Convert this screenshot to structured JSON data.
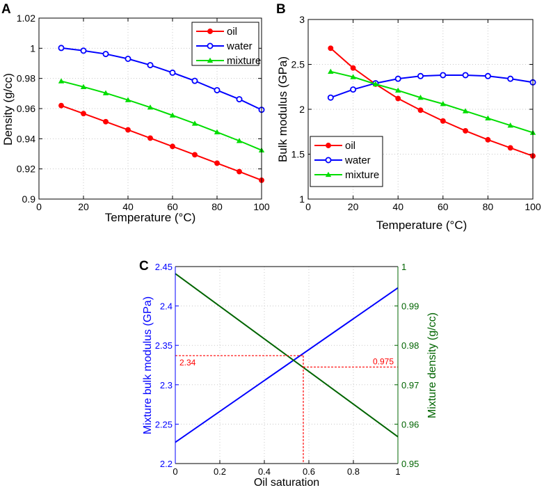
{
  "chart_data": [
    {
      "panel_label": "A",
      "type": "line",
      "xlabel": "Temperature (°C)",
      "ylabel": "Density (g/cc)",
      "xlim": [
        0,
        100
      ],
      "ylim": [
        0.9,
        1.02
      ],
      "xticks": [
        0,
        20,
        40,
        60,
        80,
        100
      ],
      "xtick_labels": [
        "0",
        "20",
        "40",
        "60",
        "80",
        "100"
      ],
      "yticks": [
        0.9,
        0.92,
        0.94,
        0.96,
        0.98,
        1.0,
        1.02
      ],
      "ytick_labels": [
        "0.9",
        "0.92",
        "0.94",
        "0.96",
        "0.98",
        "1",
        "1.02"
      ],
      "grid": true,
      "legend_position": "top-right",
      "x": [
        10,
        20,
        30,
        40,
        50,
        60,
        70,
        80,
        90,
        100
      ],
      "series": [
        {
          "name": "oil",
          "color": "#ff0000",
          "marker": "filled-circle",
          "values": [
            0.962,
            0.9567,
            0.9513,
            0.9459,
            0.9404,
            0.9349,
            0.9294,
            0.9238,
            0.9182,
            0.9125
          ]
        },
        {
          "name": "water",
          "color": "#0000ff",
          "marker": "open-circle",
          "values": [
            1.0002,
            0.9984,
            0.9962,
            0.993,
            0.9888,
            0.9838,
            0.9784,
            0.9722,
            0.9662,
            0.9592
          ]
        },
        {
          "name": "mixture",
          "color": "#00dd00",
          "marker": "triangle",
          "values": [
            0.9782,
            0.9744,
            0.9703,
            0.9657,
            0.9608,
            0.9555,
            0.9501,
            0.9444,
            0.9386,
            0.9324
          ]
        }
      ]
    },
    {
      "panel_label": "B",
      "type": "line",
      "xlabel": "Temperature (°C)",
      "ylabel": "Bulk modulus (GPa)",
      "xlim": [
        0,
        100
      ],
      "ylim": [
        1,
        3
      ],
      "xticks": [
        0,
        20,
        40,
        60,
        80,
        100
      ],
      "xtick_labels": [
        "0",
        "20",
        "40",
        "60",
        "80",
        "100"
      ],
      "yticks": [
        1,
        1.5,
        2,
        2.5,
        3
      ],
      "ytick_labels": [
        "1",
        "1.5",
        "2",
        "2.5",
        "3"
      ],
      "grid": true,
      "legend_position": "bottom-left",
      "x": [
        10,
        20,
        30,
        40,
        50,
        60,
        70,
        80,
        90,
        100
      ],
      "series": [
        {
          "name": "oil",
          "color": "#ff0000",
          "marker": "filled-circle",
          "values": [
            2.68,
            2.46,
            2.28,
            2.12,
            1.99,
            1.87,
            1.76,
            1.66,
            1.57,
            1.48
          ]
        },
        {
          "name": "water",
          "color": "#0000ff",
          "marker": "open-circle",
          "values": [
            2.13,
            2.22,
            2.29,
            2.34,
            2.37,
            2.38,
            2.38,
            2.37,
            2.34,
            2.3
          ]
        },
        {
          "name": "mixture",
          "color": "#00dd00",
          "marker": "triangle",
          "values": [
            2.42,
            2.36,
            2.28,
            2.21,
            2.13,
            2.06,
            1.98,
            1.9,
            1.82,
            1.74
          ]
        }
      ]
    },
    {
      "panel_label": "C",
      "type": "line",
      "xlabel": "Oil saturation",
      "ylabel_left": "Mixture bulk modulus (GPa)",
      "ylabel_right": "Mixture density (g/cc)",
      "xlim": [
        0,
        1
      ],
      "ylim_left": [
        2.2,
        2.45
      ],
      "ylim_right": [
        0.95,
        1.0
      ],
      "xticks": [
        0,
        0.2,
        0.4,
        0.6,
        0.8,
        1
      ],
      "xtick_labels": [
        "0",
        "0.2",
        "0.4",
        "0.6",
        "0.8",
        "1"
      ],
      "yticks_left": [
        2.2,
        2.25,
        2.3,
        2.35,
        2.4,
        2.45
      ],
      "ytick_labels_left": [
        "2.2",
        "2.25",
        "2.3",
        "2.35",
        "2.4",
        "2.45"
      ],
      "yticks_right": [
        0.95,
        0.96,
        0.97,
        0.98,
        0.99,
        1.0
      ],
      "ytick_labels_right": [
        "0.95",
        "0.96",
        "0.97",
        "0.98",
        "0.99",
        "1"
      ],
      "grid": true,
      "series": [
        {
          "name": "Mixture bulk modulus",
          "axis": "left",
          "color": "#0000ff",
          "x": [
            0,
            1
          ],
          "values": [
            2.227,
            2.423
          ]
        },
        {
          "name": "Mixture density",
          "axis": "right",
          "color": "#006400",
          "x": [
            0,
            1
          ],
          "values": [
            0.9982,
            0.9568
          ]
        }
      ],
      "annotations": {
        "intersection_x": 0.575,
        "bulk_modulus_value": 2.337,
        "density_value": 0.9745,
        "bulk_modulus_label": "2.34",
        "density_label": "0.975",
        "color": "#ff0000"
      }
    }
  ]
}
